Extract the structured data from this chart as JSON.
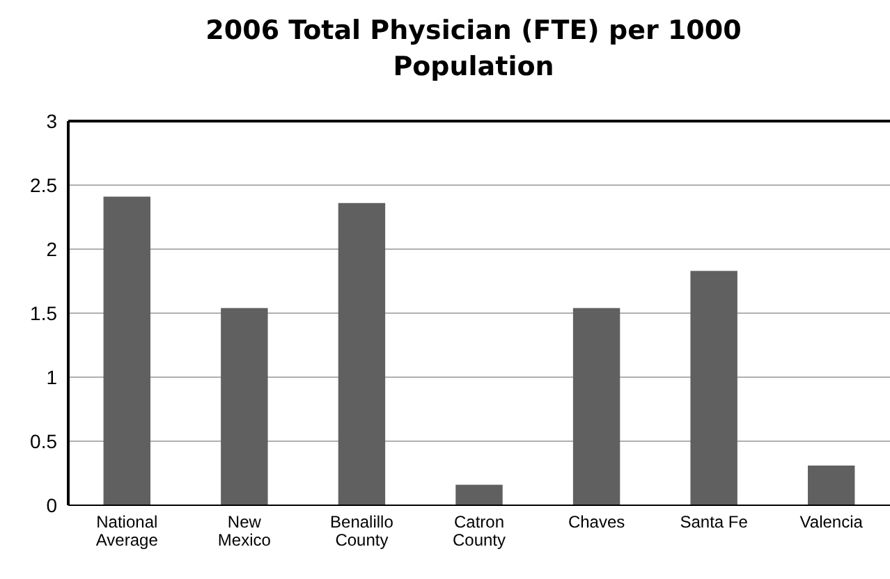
{
  "chart_data": {
    "type": "bar",
    "title": "2006 Total Physician (FTE) per 1000 Population",
    "categories": [
      "National Average",
      "New Mexico",
      "Benalillo County",
      "Catron County",
      "Chaves",
      "Santa Fe",
      "Valencia"
    ],
    "values": [
      2.41,
      1.54,
      2.36,
      0.16,
      1.54,
      1.83,
      0.31
    ],
    "color": "#606060",
    "ylim": [
      0,
      3
    ],
    "yticks": [
      0,
      0.5,
      1,
      1.5,
      2,
      2.5,
      3
    ],
    "grid": "y"
  }
}
